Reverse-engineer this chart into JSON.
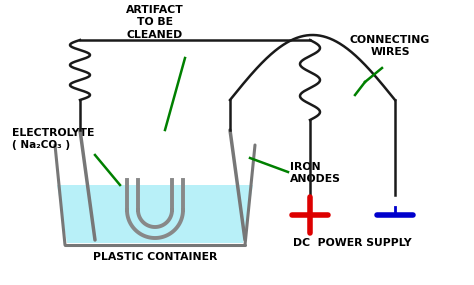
{
  "bg_color": "#ffffff",
  "water_color": "#b8f0f8",
  "container_color": "#777777",
  "wire_color": "#1a1a1a",
  "green_color": "#008000",
  "red_color": "#dd0000",
  "blue_color": "#0000cc",
  "text_color": "#000000",
  "artifact_color": "#888888",
  "labels": {
    "electrolyte_line1": "ELECTROLYTE",
    "electrolyte_line2": "( Na₂CO₃ )",
    "artifact": "ARTIFACT\nTO BE\nCLEANED",
    "iron_anodes": "IRON\nANODES",
    "connecting_wires": "CONNECTING\nWIRES",
    "plastic_container": "PLASTIC CONTAINER",
    "dc_power": "DC  POWER SUPPLY"
  },
  "figsize": [
    4.74,
    2.85
  ],
  "dpi": 100
}
